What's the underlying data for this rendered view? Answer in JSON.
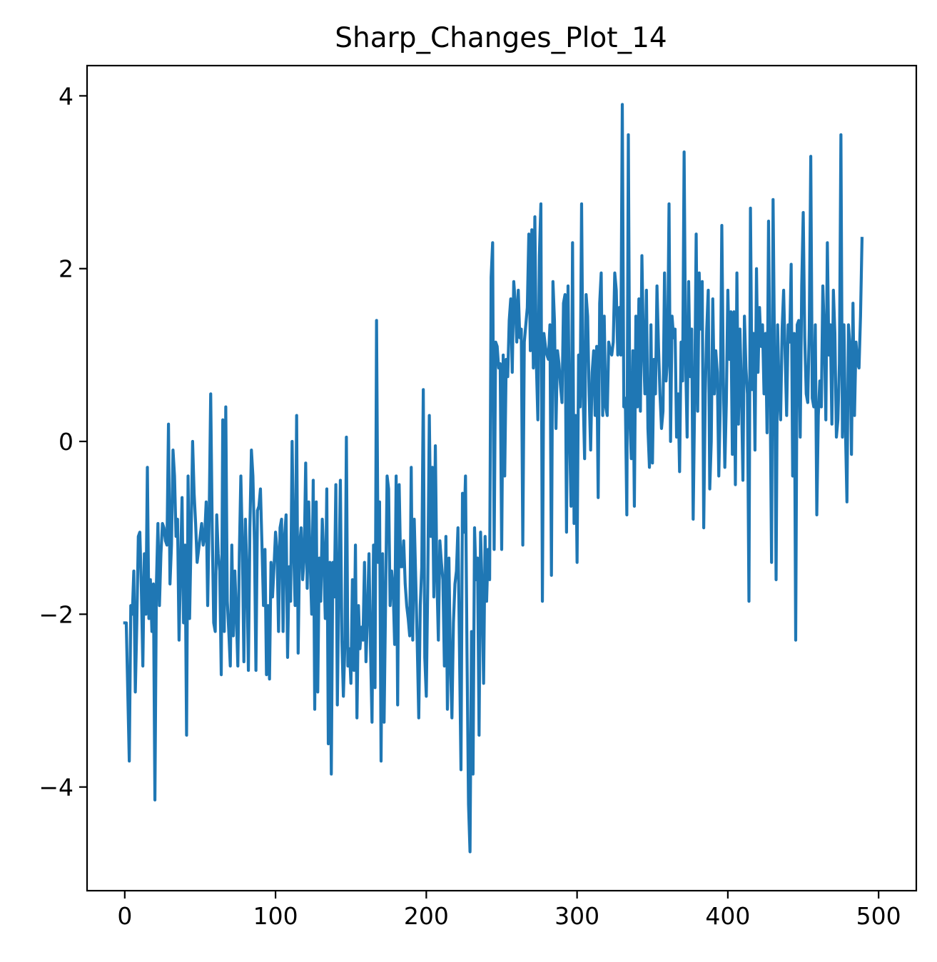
{
  "chart_data": {
    "type": "line",
    "title": "Sharp_Changes_Plot_14",
    "xlabel": "",
    "ylabel": "",
    "xlim": [
      -25,
      525
    ],
    "ylim": [
      -5.2,
      4.35
    ],
    "grid": false,
    "legend": "none",
    "x_ticks": [
      0,
      100,
      200,
      300,
      400,
      500
    ],
    "x_tick_labels": [
      "0",
      "100",
      "200",
      "300",
      "400",
      "500"
    ],
    "y_ticks": [
      -4,
      -2,
      0,
      2,
      4
    ],
    "y_tick_labels": [
      "−4",
      "−2",
      "0",
      "2",
      "4"
    ],
    "series": [
      {
        "color": "#1f77b4",
        "x_start": 0,
        "x_step": 1,
        "values": [
          -2.1,
          -2.1,
          -2.9,
          -3.7,
          -1.9,
          -2.0,
          -1.5,
          -2.9,
          -2.1,
          -1.1,
          -1.05,
          -1.7,
          -2.6,
          -1.3,
          -2.0,
          -0.3,
          -2.05,
          -1.6,
          -2.2,
          -1.65,
          -4.15,
          -1.65,
          -0.95,
          -1.9,
          -1.3,
          -0.95,
          -1.0,
          -1.15,
          -1.2,
          0.2,
          -1.65,
          -1.2,
          -0.1,
          -0.4,
          -1.1,
          -0.9,
          -2.3,
          -1.45,
          -0.65,
          -2.1,
          -1.2,
          -3.4,
          -0.4,
          -2.05,
          -1.1,
          0.0,
          -0.6,
          -0.95,
          -1.4,
          -1.25,
          -1.1,
          -0.95,
          -1.2,
          -1.1,
          -0.7,
          -1.9,
          -0.85,
          0.55,
          -1.0,
          -2.1,
          -2.2,
          -0.85,
          -1.3,
          -1.5,
          -2.7,
          0.25,
          -2.2,
          0.4,
          -1.85,
          -2.2,
          -2.6,
          -1.2,
          -2.25,
          -1.5,
          -2.0,
          -2.6,
          -1.3,
          -0.4,
          -1.2,
          -2.55,
          -0.9,
          -1.5,
          -2.65,
          -1.0,
          -0.1,
          -0.4,
          -1.15,
          -2.65,
          -0.8,
          -0.75,
          -0.55,
          -1.2,
          -1.9,
          -1.25,
          -2.7,
          -1.9,
          -2.75,
          -1.4,
          -1.8,
          -1.45,
          -1.05,
          -1.25,
          -2.2,
          -1.0,
          -0.9,
          -2.2,
          -1.1,
          -0.85,
          -2.5,
          -1.45,
          -1.85,
          0.0,
          -1.25,
          -1.9,
          0.3,
          -2.45,
          -1.2,
          -1.0,
          -1.6,
          -1.35,
          -0.25,
          -1.7,
          -0.7,
          -1.4,
          -2.0,
          -0.45,
          -3.1,
          -0.7,
          -2.9,
          -1.35,
          -1.85,
          -0.9,
          -1.35,
          -2.05,
          -0.55,
          -3.5,
          -1.4,
          -3.85,
          -1.4,
          -1.8,
          -0.5,
          -3.05,
          -1.65,
          -0.45,
          -2.3,
          -2.95,
          -2.35,
          0.05,
          -2.6,
          -2.4,
          -2.8,
          -1.6,
          -2.65,
          -1.2,
          -3.2,
          -1.9,
          -2.4,
          -2.15,
          -2.3,
          -1.4,
          -2.55,
          -2.0,
          -1.3,
          -2.4,
          -3.25,
          -1.2,
          -2.85,
          1.4,
          -1.4,
          -0.7,
          -3.7,
          -1.3,
          -3.25,
          -1.85,
          -0.4,
          -0.55,
          -1.9,
          -1.5,
          -1.7,
          -2.35,
          -0.4,
          -3.05,
          -0.5,
          -1.45,
          -1.45,
          -1.15,
          -1.65,
          -1.9,
          -2.05,
          -2.25,
          -0.3,
          -2.3,
          -0.9,
          -1.6,
          -2.35,
          -3.2,
          -1.9,
          -1.45,
          0.6,
          -2.5,
          -2.95,
          -1.6,
          0.3,
          -1.1,
          -0.3,
          -1.8,
          -0.05,
          -1.55,
          -2.3,
          -1.15,
          -1.4,
          -1.6,
          -2.6,
          -1.1,
          -3.1,
          -1.35,
          -2.55,
          -3.2,
          -2.1,
          -1.65,
          -1.5,
          -1.0,
          -2.4,
          -3.8,
          -0.6,
          -1.05,
          -0.4,
          -2.45,
          -4.2,
          -4.75,
          -2.2,
          -3.85,
          -1.0,
          -1.6,
          -1.35,
          -3.4,
          -1.05,
          -1.7,
          -2.8,
          -1.1,
          -1.85,
          -1.25,
          -1.6,
          1.9,
          2.3,
          -1.25,
          1.15,
          1.1,
          0.85,
          0.9,
          -1.25,
          1.0,
          -0.4,
          0.95,
          0.75,
          1.4,
          1.65,
          0.8,
          1.85,
          1.6,
          1.15,
          1.75,
          1.2,
          1.3,
          -1.2,
          1.15,
          1.35,
          1.55,
          2.4,
          1.05,
          2.45,
          0.85,
          2.6,
          0.9,
          0.25,
          2.15,
          2.75,
          -1.85,
          1.25,
          1.1,
          1.0,
          0.95,
          1.35,
          -1.55,
          1.85,
          1.4,
          0.15,
          1.05,
          0.9,
          0.65,
          0.45,
          1.6,
          1.7,
          -1.05,
          1.8,
          0.15,
          -0.75,
          2.3,
          -0.95,
          0.3,
          -1.4,
          1.0,
          0.4,
          2.75,
          0.55,
          -0.2,
          1.7,
          1.45,
          0.55,
          -0.1,
          0.8,
          1.05,
          0.3,
          1.1,
          -0.65,
          1.6,
          1.95,
          0.3,
          1.45,
          0.4,
          0.3,
          1.15,
          1.05,
          1.0,
          1.15,
          1.95,
          1.75,
          1.0,
          1.55,
          1.0,
          3.9,
          0.4,
          0.5,
          -0.85,
          3.55,
          0.25,
          -0.2,
          1.05,
          -0.75,
          1.45,
          0.4,
          1.65,
          0.35,
          2.15,
          1.1,
          0.55,
          1.75,
          0.15,
          -0.3,
          1.35,
          -0.25,
          0.95,
          0.55,
          1.8,
          1.1,
          0.55,
          0.15,
          0.35,
          1.95,
          0.7,
          0.95,
          2.75,
          0.0,
          1.45,
          1.2,
          1.3,
          0.05,
          0.55,
          -0.35,
          1.15,
          0.7,
          3.35,
          0.95,
          0.05,
          1.85,
          0.75,
          1.3,
          -0.9,
          0.5,
          2.4,
          0.35,
          1.95,
          1.3,
          1.85,
          -1.0,
          0.55,
          1.3,
          1.75,
          -0.55,
          0.0,
          1.65,
          0.55,
          1.05,
          0.8,
          -0.4,
          0.45,
          2.5,
          0.75,
          -0.3,
          0.45,
          1.75,
          0.95,
          1.5,
          -0.15,
          1.5,
          -0.5,
          1.95,
          0.2,
          1.3,
          0.6,
          -0.45,
          1.45,
          0.85,
          0.55,
          -1.85,
          2.7,
          0.6,
          1.25,
          -0.1,
          2.0,
          0.8,
          1.55,
          1.1,
          1.35,
          0.55,
          1.25,
          0.1,
          2.55,
          0.65,
          -1.4,
          2.8,
          0.95,
          -1.6,
          1.35,
          0.55,
          0.25,
          1.3,
          1.75,
          1.0,
          0.3,
          1.35,
          1.15,
          2.05,
          -0.4,
          1.25,
          -2.3,
          1.35,
          1.4,
          0.05,
          1.8,
          2.65,
          1.2,
          0.55,
          0.45,
          1.3,
          3.3,
          0.5,
          0.4,
          1.35,
          -0.85,
          0.3,
          0.7,
          0.4,
          1.8,
          1.25,
          0.25,
          2.3,
          1.0,
          1.35,
          0.2,
          1.75,
          1.25,
          0.05,
          0.25,
          0.9,
          3.55,
          0.05,
          1.35,
          0.15,
          -0.7,
          1.35,
          1.1,
          -0.15,
          1.6,
          0.3,
          1.15,
          0.9,
          0.85,
          1.45,
          2.35
        ]
      }
    ]
  }
}
